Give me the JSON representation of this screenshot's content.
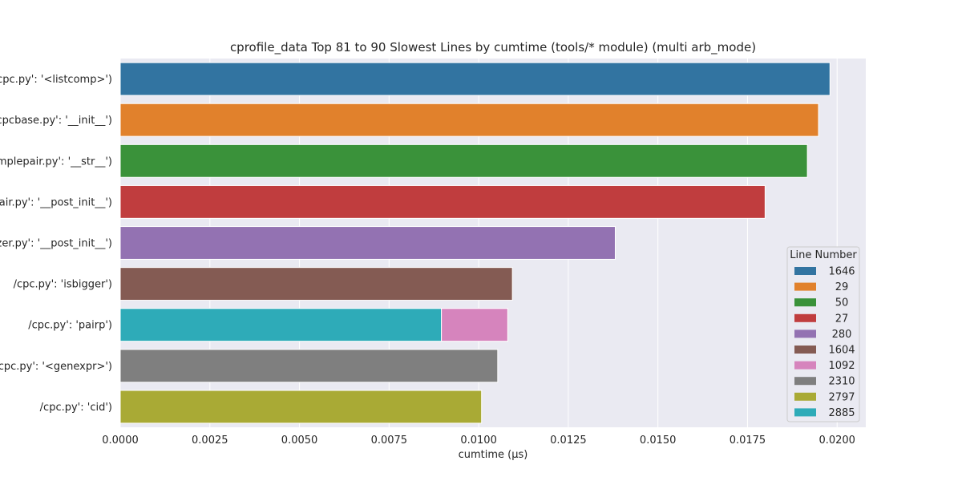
{
  "chart_data": {
    "type": "bar",
    "orientation": "horizontal",
    "stacked": true,
    "title": "cprofile_data Top 81 to 90 Slowest Lines by cumtime (tools/* module) (multi arb_mode)",
    "xlabel": "cumtime (µs)",
    "ylabel": "",
    "xlim": [
      0,
      0.0208
    ],
    "x_ticks": [
      "0.0000",
      "0.0025",
      "0.0050",
      "0.0075",
      "0.0100",
      "0.0125",
      "0.0150",
      "0.0175",
      "0.0200"
    ],
    "x_tick_values": [
      0,
      0.0025,
      0.005,
      0.0075,
      0.01,
      0.0125,
      0.015,
      0.0175,
      0.02
    ],
    "grid": true,
    "legend_position": "lower-right",
    "legend_title": "Line Number",
    "categories": [
      "/cpc.py': '<listcomp>')",
      "/cpcbase.py': '__init__')",
      "implepair.py': '__str__')",
      "pair.py': '__post_init__')",
      "zer.py': '__post_init__')",
      "/cpc.py': 'isbigger')",
      "/cpc.py': 'pairp')",
      "/cpc.py': '<genexpr>')",
      "/cpc.py': 'cid')"
    ],
    "series": [
      {
        "name": "1646",
        "color": "#3274a1",
        "values": [
          0.0198,
          0,
          0,
          0,
          0,
          0,
          0,
          0,
          0
        ]
      },
      {
        "name": "29",
        "color": "#e1812c",
        "values": [
          0,
          0.01948,
          0,
          0,
          0,
          0,
          0,
          0,
          0
        ]
      },
      {
        "name": "50",
        "color": "#3a923a",
        "values": [
          0,
          0,
          0.01917,
          0,
          0,
          0,
          0,
          0,
          0
        ]
      },
      {
        "name": "27",
        "color": "#c03d3e",
        "values": [
          0,
          0,
          0,
          0.01799,
          0,
          0,
          0,
          0,
          0
        ]
      },
      {
        "name": "280",
        "color": "#9372b2",
        "values": [
          0,
          0,
          0,
          0,
          0.01381,
          0,
          0,
          0,
          0
        ]
      },
      {
        "name": "1604",
        "color": "#845b53",
        "values": [
          0,
          0,
          0,
          0,
          0,
          0.01094,
          0,
          0,
          0
        ]
      },
      {
        "name": "1092",
        "color": "#d684bd",
        "values": [
          0,
          0,
          0,
          0,
          0,
          0,
          0.00185,
          0,
          0
        ]
      },
      {
        "name": "2310",
        "color": "#7f7f7f",
        "values": [
          0,
          0,
          0,
          0,
          0,
          0,
          0,
          0.01053,
          0
        ]
      },
      {
        "name": "2797",
        "color": "#a9aa35",
        "values": [
          0,
          0,
          0,
          0,
          0,
          0,
          0,
          0,
          0.01008
        ]
      },
      {
        "name": "2885",
        "color": "#2eabb8",
        "values": [
          0,
          0,
          0,
          0,
          0,
          0,
          0.00896,
          0,
          0
        ]
      }
    ],
    "stack_order": [
      "1646",
      "29",
      "50",
      "27",
      "280",
      "1604",
      "2885",
      "1092",
      "2310",
      "2797"
    ]
  }
}
